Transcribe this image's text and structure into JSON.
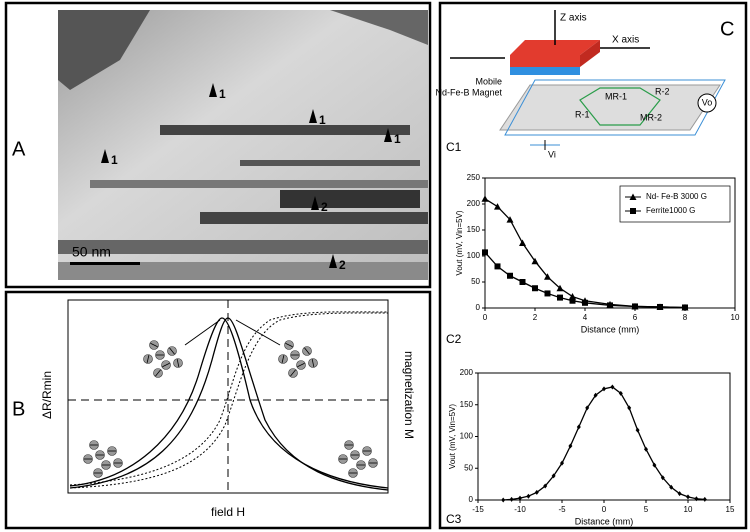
{
  "panels": {
    "a": "A",
    "b": "B",
    "c": "C",
    "c1": "C1",
    "c2": "C2",
    "c3": "C3"
  },
  "micrograph": {
    "scale_bar": "50 nm",
    "markers": [
      "1",
      "1",
      "1",
      "1",
      "2",
      "2"
    ]
  },
  "schematic": {
    "x_label": "field H",
    "y_label": "ΔR/Rmin",
    "y2_label": "magnetization M"
  },
  "diagram": {
    "z_axis": "Z axis",
    "x_axis": "X axis",
    "magnet": [
      "Mobile",
      "Nd-Fe-B Magnet"
    ],
    "r1": "R-1",
    "mr1": "MR-1",
    "r2": "R-2",
    "mr2": "MR-2",
    "vo": "Vo",
    "vi": "Vi"
  },
  "chart_data": [
    {
      "type": "line",
      "x_label": "Distance (mm)",
      "y_label": "Vout (mV, Vin=5V)",
      "x": [
        0,
        0.5,
        1,
        1.5,
        2,
        2.5,
        3,
        3.5,
        4,
        5,
        6,
        7,
        8
      ],
      "series": [
        {
          "name": "Nd- Fe-B 3000 G",
          "color": "#000000",
          "marker": "triangle",
          "values": [
            210,
            195,
            170,
            125,
            90,
            60,
            38,
            22,
            14,
            7,
            3,
            2,
            1
          ]
        },
        {
          "name": "Ferrite1000 G",
          "color": "#000000",
          "marker": "square",
          "values": [
            107,
            80,
            62,
            50,
            38,
            28,
            20,
            14,
            10,
            5,
            3,
            2,
            1
          ]
        }
      ],
      "xlim": [
        0,
        10
      ],
      "xticks": [
        0,
        2,
        4,
        6,
        8,
        10
      ],
      "ylim": [
        0,
        250
      ],
      "yticks": [
        0,
        50,
        100,
        150,
        200,
        250
      ],
      "legend": "upper right"
    },
    {
      "type": "line",
      "x_label": "Distance (mm)",
      "y_label": "Vout (mV, Vin=5V)",
      "x": [
        -12,
        -11,
        -10,
        -9,
        -8,
        -7,
        -6,
        -5,
        -4,
        -3,
        -2,
        -1,
        0,
        1,
        2,
        3,
        4,
        5,
        6,
        7,
        8,
        9,
        10,
        11,
        12
      ],
      "series": [
        {
          "color": "#000000",
          "marker": "diamond",
          "values": [
            0,
            1,
            3,
            6,
            12,
            22,
            38,
            58,
            85,
            115,
            145,
            165,
            175,
            178,
            168,
            145,
            110,
            80,
            55,
            35,
            20,
            10,
            5,
            2,
            1
          ]
        }
      ],
      "xlim": [
        -15,
        15
      ],
      "xticks": [
        -15,
        -10,
        -5,
        0,
        5,
        10,
        15
      ],
      "ylim": [
        0,
        200
      ],
      "yticks": [
        0,
        50,
        100,
        150,
        200
      ]
    }
  ]
}
